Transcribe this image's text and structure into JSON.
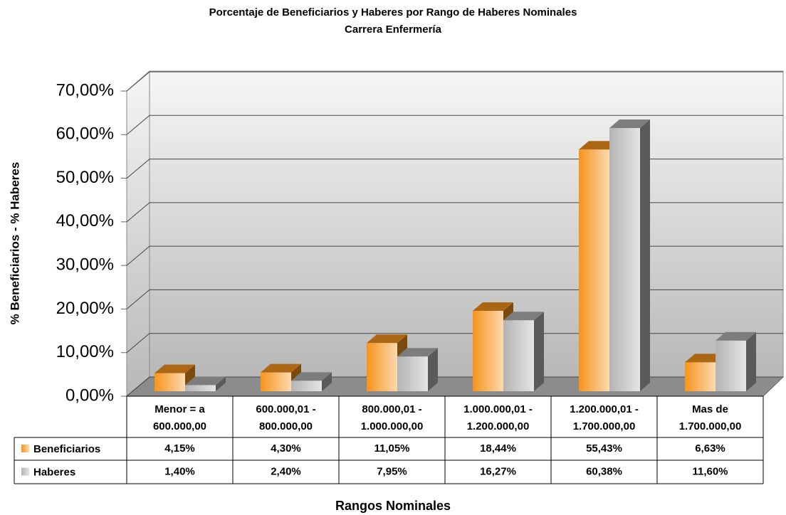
{
  "chart_data": {
    "type": "bar3d",
    "title": "Porcentaje de Beneficiarios y Haberes por Rango de Haberes Nominales",
    "subtitle": "Carrera Enfermería",
    "y_label": "% Beneficiarios - % Haberes",
    "x_label": "Rangos Nominales",
    "categories": [
      [
        "Menor = a",
        "600.000,00"
      ],
      [
        "600.000,01 -",
        "800.000,00"
      ],
      [
        "800.000,01 -",
        "1.000.000,00"
      ],
      [
        "1.000.000,01 -",
        "1.200.000,00"
      ],
      [
        "1.200.000,01 -",
        "1.700.000,00"
      ],
      [
        "Mas de",
        "1.700.000,00"
      ]
    ],
    "series": [
      {
        "name": "Beneficiarios",
        "color": "#f7941d",
        "values": [
          4.15,
          4.3,
          11.05,
          18.44,
          55.43,
          6.63
        ],
        "value_labels": [
          "4,15%",
          "4,30%",
          "11,05%",
          "18,44%",
          "55,43%",
          "6,63%"
        ]
      },
      {
        "name": "Haberes",
        "color": "#b4b4b4",
        "values": [
          1.4,
          2.4,
          7.95,
          16.27,
          60.38,
          11.6
        ],
        "value_labels": [
          "1,40%",
          "2,40%",
          "7,95%",
          "16,27%",
          "60,38%",
          "11,60%"
        ]
      }
    ],
    "ylim": [
      0,
      70
    ],
    "yticks": [
      {
        "value": 0,
        "label": "0,00%"
      },
      {
        "value": 10,
        "label": "10,00%"
      },
      {
        "value": 20,
        "label": "20,00%"
      },
      {
        "value": 30,
        "label": "30,00%"
      },
      {
        "value": 40,
        "label": "40,00%"
      },
      {
        "value": 50,
        "label": "50,00%"
      },
      {
        "value": 60,
        "label": "60,00%"
      },
      {
        "value": 70,
        "label": "70,00%"
      }
    ],
    "grid": true
  }
}
